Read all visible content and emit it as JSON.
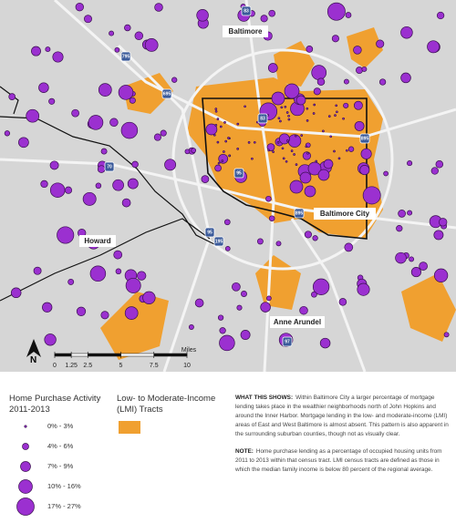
{
  "map": {
    "places": [
      "Baltimore",
      "Baltimore City",
      "Howard",
      "Anne Arundel"
    ],
    "shields": [
      "83",
      "795",
      "695",
      "83",
      "895",
      "70",
      "95",
      "895",
      "95",
      "195",
      "97"
    ],
    "north": "N",
    "scale": {
      "ticks": [
        0,
        1.25,
        2.5,
        5,
        7.5,
        10
      ],
      "unit": "Miles"
    }
  },
  "legend": {
    "title": "Home Purchase Activity 2011-2013",
    "items": [
      "0% - 3%",
      "4% - 6%",
      "7% - 9%",
      "10% - 16%",
      "17% - 27%"
    ],
    "lmi_title": "Low- to Moderate-Income (LMI) Tracts"
  },
  "notes": [
    {
      "lead": "WHAT THIS SHOWS:",
      "text": "Within Baltimore City a larger percentage of mortgage lending takes place in the wealthier neighborhoods north of John Hopkins and around the Inner Harbor. Mortgage lending in the low- and moderate-income (LMI) areas of East and West Baltimore is almost absent. This pattern is also apparent in the surrounding suburban counties, though not as visually clear."
    },
    {
      "lead": "NOTE:",
      "text": "Home purchase lending as a percentage of occupied housing units from 2011 to 2013 within that census tract. LMI census tracts are defined as those in which the median family income is below 80 percent of the regional average."
    }
  ]
}
